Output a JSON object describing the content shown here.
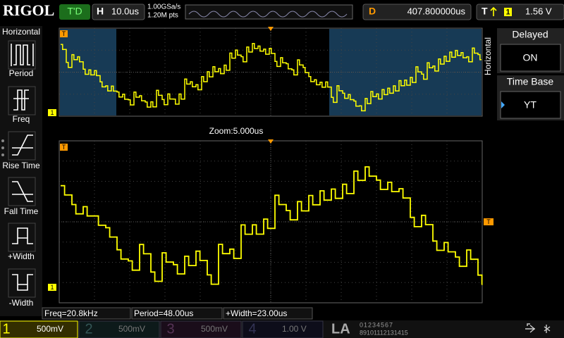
{
  "header": {
    "logo": "RIGOL",
    "run_status": "T'D",
    "timebase_label": "H",
    "timebase": "10.0us",
    "sample_rate": "1.00GSa/s",
    "memory_depth": "1.20M pts",
    "delay_label": "D",
    "delay": "407.800000us",
    "trigger_label": "T",
    "trigger_source": "1",
    "trigger_level": "1.56 V"
  },
  "left_menu": {
    "title": "Horizontal",
    "items": [
      "Period",
      "Freq",
      "Rise Time",
      "Fall Time",
      "+Width",
      "-Width"
    ]
  },
  "right_menu": {
    "title": "Horizontal",
    "items": [
      {
        "label": "Delayed",
        "value": "ON"
      },
      {
        "label": "Time Base",
        "value": "YT"
      }
    ]
  },
  "display": {
    "zoom_label": "Zoom:5.000us",
    "trigger_marker": "T",
    "channel_marker": "1"
  },
  "measurements": [
    "Freq=20.8kHz",
    "Period=48.00us",
    "+Width=23.00us"
  ],
  "channels": [
    {
      "number": "1",
      "scale": "500mV"
    },
    {
      "number": "2",
      "scale": "500mV"
    },
    {
      "number": "3",
      "scale": "500mV"
    },
    {
      "number": "4",
      "scale": "1.00 V"
    }
  ],
  "la": {
    "label": "LA",
    "rows": [
      "01234567",
      "89101112131415"
    ]
  }
}
